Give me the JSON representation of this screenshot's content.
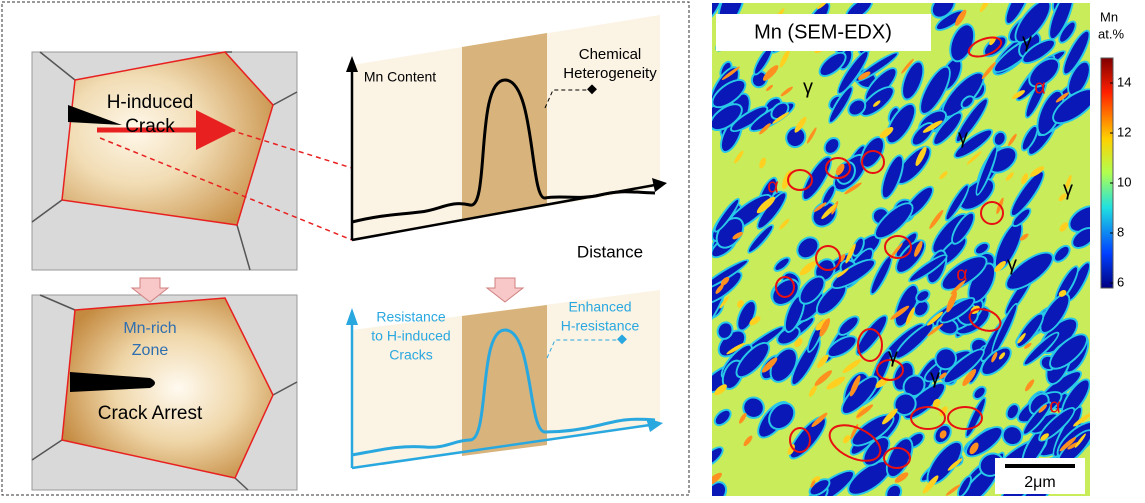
{
  "left_panel": {
    "top_grain": [
      "H-induced",
      "Crack"
    ],
    "bottom_grain": {
      "zone": [
        "Mn-rich",
        "Zone"
      ],
      "label": "Crack Arrest"
    }
  },
  "top_plot": {
    "y_label": "Mn Content",
    "annotation": [
      "Chemical",
      "Heterogeneity"
    ],
    "x_label": "Distance"
  },
  "bottom_plot": {
    "y_label": [
      "Resistance",
      "to H-induced",
      "Cracks"
    ],
    "annotation": [
      "Enhanced",
      "H-resistance"
    ]
  },
  "micrograph": {
    "title": "Mn (SEM-EDX)",
    "gamma_labels": [
      "γ",
      "γ",
      "γ",
      "γ",
      "γ",
      "γ",
      "γ"
    ],
    "alpha_labels": [
      "α",
      "α",
      "α",
      "α"
    ],
    "scale_bar": "2μm"
  },
  "colorbar": {
    "title": [
      "Mn",
      "at.%"
    ],
    "ticks": [
      14,
      12,
      10,
      8,
      6
    ]
  }
}
